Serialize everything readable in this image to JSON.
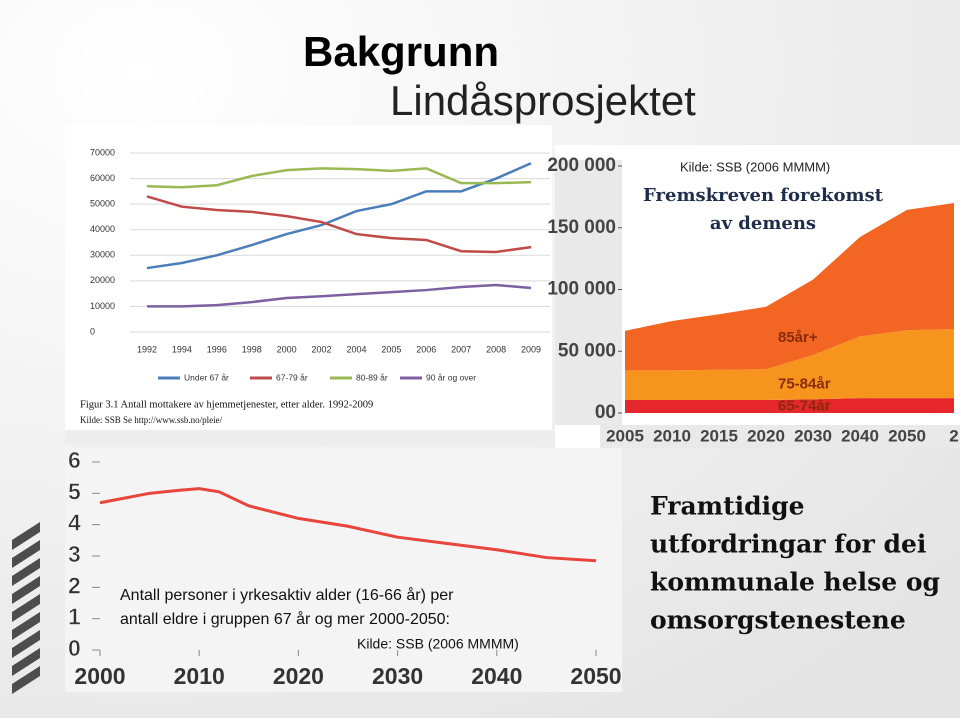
{
  "slide": {
    "title": "Bakgrunn",
    "subtitle": "Lindåsprosjektet",
    "text_lines": [
      "Framtidige",
      "utfordringar for dei",
      "kommunale helse og",
      "omsorgstenestene"
    ]
  },
  "chart_data": [
    {
      "type": "line",
      "categories": [
        "1992",
        "1994",
        "1996",
        "1998",
        "2000",
        "2002",
        "2004",
        "2005",
        "2006",
        "2007",
        "2008",
        "2009"
      ],
      "series": [
        {
          "name": "Under 67 år",
          "color": "#4a7ebb",
          "values": [
            25000,
            27000,
            30000,
            34000,
            38300,
            41800,
            47300,
            50000,
            55000,
            55000,
            60000,
            66000
          ]
        },
        {
          "name": "67-79 år",
          "color": "#be4b48",
          "values": [
            53000,
            49000,
            47700,
            47000,
            45300,
            43000,
            38300,
            36700,
            36000,
            31600,
            31300,
            33200
          ]
        },
        {
          "name": "80-89 år",
          "color": "#98b954",
          "values": [
            57000,
            56600,
            57400,
            61000,
            63300,
            64000,
            63700,
            63000,
            64000,
            58200,
            58200,
            58600
          ]
        },
        {
          "name": "90 år og over",
          "color": "#7d60a0",
          "values": [
            10000,
            10000,
            10500,
            11700,
            13300,
            14000,
            14800,
            15600,
            16400,
            17600,
            18400,
            17200
          ]
        }
      ],
      "ylim": [
        0,
        70000
      ],
      "yticks": [
        0,
        10000,
        20000,
        30000,
        40000,
        50000,
        60000,
        70000
      ],
      "grid": true,
      "legend": "bottom",
      "caption": "Figur 3.1  Antall mottakere av hjemmetjenester, etter alder. 1992-2009",
      "source": "Kilde: SSB Se http://www.ssb.no/pleie/"
    },
    {
      "type": "stacked_area",
      "source": "Kilde: SSB (2006 MMMM)",
      "title_lines": [
        "Fremskreven forekomst",
        "av demens"
      ],
      "categories": [
        "2005",
        "2010",
        "2015",
        "2020",
        "2030",
        "2040",
        "2050",
        "2"
      ],
      "series": [
        {
          "name": "65-74år",
          "color": "#e5262a",
          "values": [
            10500,
            10500,
            10500,
            10500,
            11000,
            12000,
            12000,
            12000
          ]
        },
        {
          "name": "75-84år",
          "color": "#f7941d",
          "values": [
            24000,
            24000,
            24500,
            25000,
            36000,
            50000,
            55000,
            56000
          ]
        },
        {
          "name": "85år+",
          "color": "#f26522",
          "values": [
            32000,
            40000,
            45000,
            50500,
            61000,
            80500,
            97500,
            102000
          ]
        }
      ],
      "ylim": [
        0,
        200000
      ],
      "yticks": [
        {
          "value": 0,
          "label": "00"
        },
        {
          "value": 50000,
          "label": "50 000"
        },
        {
          "value": 100000,
          "label": "100 000"
        },
        {
          "value": 150000,
          "label": "150 000"
        },
        {
          "value": 200000,
          "label": "200 000"
        }
      ]
    },
    {
      "type": "line_xy",
      "x": [
        2000,
        2005,
        2008,
        2010,
        2012,
        2015,
        2020,
        2025,
        2030,
        2035,
        2040,
        2045,
        2050
      ],
      "values": [
        4.7,
        5.0,
        5.1,
        5.15,
        5.05,
        4.6,
        4.2,
        3.95,
        3.6,
        3.4,
        3.2,
        2.95,
        2.85
      ],
      "color": "#e8453c",
      "xlim": [
        2000,
        2050
      ],
      "xticks": [
        2000,
        2010,
        2020,
        2030,
        2040,
        2050
      ],
      "ylim": [
        0,
        6
      ],
      "yticks": [
        0,
        1,
        2,
        3,
        4,
        5,
        6
      ],
      "annotation_lines": [
        "Antall personer i yrkesaktiv alder (16-66 år) per",
        "antall eldre i gruppen 67 år og mer 2000-2050:"
      ],
      "source": "Kilde: SSB (2006 MMMM)"
    }
  ]
}
